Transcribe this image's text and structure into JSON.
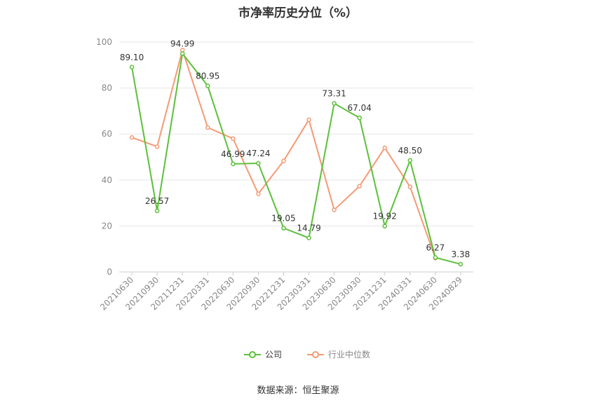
{
  "title": "市净率历史分位（%）",
  "source": "数据来源：恒生聚源",
  "colors": {
    "company": "#5cc03a",
    "industry": "#f59a74",
    "grid": "#e6e6e6",
    "axis": "#cccccc"
  },
  "chart_data": {
    "type": "line",
    "title": "市净率历史分位（%）",
    "categories": [
      "20210630",
      "20210930",
      "20211231",
      "20220331",
      "20220630",
      "20220930",
      "20221231",
      "20230331",
      "20230630",
      "20230930",
      "20231231",
      "20240331",
      "20240630",
      "20240829"
    ],
    "ylim": [
      0,
      100
    ],
    "yticks": [
      0,
      20,
      40,
      60,
      80,
      100
    ],
    "grid": true,
    "legend_position": "bottom",
    "series": [
      {
        "name": "公司",
        "color": "#5cc03a",
        "values": [
          89.1,
          26.57,
          94.99,
          80.95,
          46.99,
          47.24,
          19.05,
          14.79,
          73.31,
          67.04,
          19.92,
          48.5,
          6.27,
          3.38
        ],
        "labels": [
          "89.10",
          "26.57",
          "94.99",
          "80.95",
          "46.99",
          "47.24",
          "19.05",
          "14.79",
          "73.31",
          "67.04",
          "19.92",
          "48.50",
          "6.27",
          "3.38"
        ]
      },
      {
        "name": "行业中位数",
        "color": "#f59a74",
        "values": [
          58.5,
          54.5,
          96.5,
          62.8,
          58.0,
          34.0,
          48.3,
          66.2,
          27.0,
          37.3,
          54.0,
          37.0,
          6.0,
          null
        ]
      }
    ]
  }
}
